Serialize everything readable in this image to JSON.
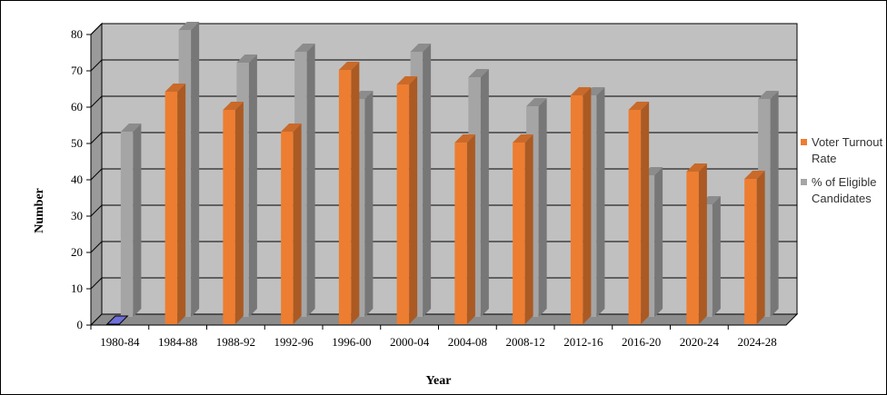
{
  "chart_data": {
    "type": "bar",
    "xlabel": "Year",
    "ylabel": "Number",
    "ylim": [
      0,
      80
    ],
    "yticks": [
      "0",
      "10",
      "20",
      "30",
      "40",
      "50",
      "60",
      "70",
      "80"
    ],
    "categories": [
      "1980-84",
      "1984-88",
      "1988-92",
      "1992-96",
      "1996-00",
      "2000-04",
      "2004-08",
      "2008-12",
      "2012-16",
      "2016-20",
      "2020-24",
      "2024-28"
    ],
    "series": [
      {
        "name": "Voter Turnout Rate",
        "color": "#ED7D31",
        "values": [
          0,
          64,
          59,
          53,
          70,
          66,
          50,
          50,
          63,
          59,
          42,
          40
        ]
      },
      {
        "name": "% of Eligible Candidates",
        "color": "#A5A5A5",
        "values": [
          51,
          79,
          70,
          73,
          60,
          73,
          66,
          58,
          61,
          39,
          31,
          60
        ]
      }
    ],
    "grid": true,
    "legend_position": "right",
    "colors": {
      "wall": "#C0C0C0",
      "gridline": "#000000",
      "first_bar_special": "#6F6FD8"
    }
  }
}
